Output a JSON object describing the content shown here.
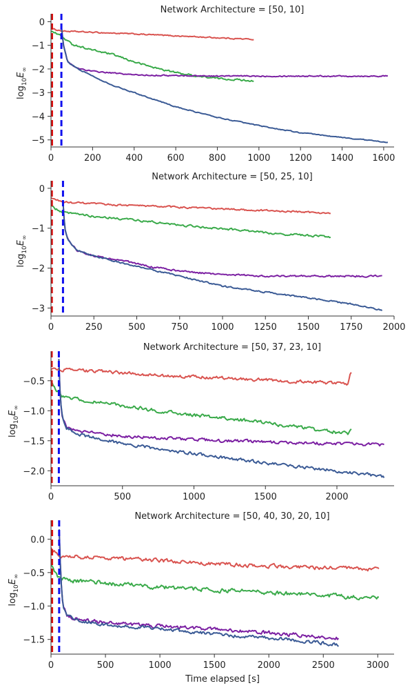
{
  "colors": {
    "series_red": "#d9534f",
    "series_green": "#3aaa4a",
    "series_purple": "#7b1fa2",
    "series_blue": "#3a5a95",
    "vline_red": "#dd1111",
    "vline_blue": "#1010ee"
  },
  "xlabel": "Time elapsed [s]",
  "chart_data": [
    {
      "type": "line",
      "title": "Network Architecture = [50, 10]",
      "ylabel": "log10E∞",
      "xlim": [
        0,
        1650
      ],
      "ylim": [
        -5.3,
        0.1
      ],
      "xticks": [
        0,
        200,
        400,
        600,
        800,
        1000,
        1200,
        1400,
        1600
      ],
      "yticks": [
        0,
        -1,
        -2,
        -3,
        -4,
        -5
      ],
      "vlines": [
        {
          "x": 5,
          "color": "vline_red"
        },
        {
          "x": 50,
          "color": "vline_blue"
        }
      ],
      "series": [
        {
          "color": "series_red",
          "noise": 0.04,
          "x": [
            0,
            60,
            200,
            400,
            600,
            800,
            975
          ],
          "y": [
            -0.3,
            -0.4,
            -0.45,
            -0.52,
            -0.6,
            -0.68,
            -0.75
          ]
        },
        {
          "color": "series_green",
          "noise": 0.06,
          "x": [
            0,
            40,
            100,
            200,
            300,
            400,
            500,
            600,
            700,
            800,
            975
          ],
          "y": [
            -0.4,
            -0.55,
            -0.95,
            -1.2,
            -1.4,
            -1.7,
            -1.95,
            -2.15,
            -2.3,
            -2.4,
            -2.5
          ]
        },
        {
          "color": "series_purple",
          "noise": 0.04,
          "x": [
            50,
            60,
            80,
            120,
            200,
            400,
            600,
            800,
            1000,
            1200,
            1400,
            1620
          ],
          "y": [
            -0.2,
            -1.0,
            -1.7,
            -1.95,
            -2.1,
            -2.25,
            -2.28,
            -2.3,
            -2.3,
            -2.3,
            -2.3,
            -2.3
          ]
        },
        {
          "color": "series_blue",
          "noise": 0.03,
          "x": [
            50,
            60,
            80,
            120,
            200,
            300,
            400,
            500,
            600,
            800,
            1000,
            1200,
            1400,
            1620
          ],
          "y": [
            -0.2,
            -1.0,
            -1.7,
            -1.95,
            -2.3,
            -2.7,
            -3.0,
            -3.3,
            -3.6,
            -4.05,
            -4.4,
            -4.7,
            -4.9,
            -5.1
          ]
        }
      ]
    },
    {
      "type": "line",
      "title": "Network Architecture = [50, 25, 10]",
      "ylabel": "log10E∞",
      "xlim": [
        0,
        2000
      ],
      "ylim": [
        -3.2,
        0.05
      ],
      "xticks": [
        0,
        250,
        500,
        750,
        1000,
        1250,
        1500,
        1750,
        2000
      ],
      "yticks": [
        0,
        -1,
        -2,
        -3
      ],
      "vlines": [
        {
          "x": 5,
          "color": "vline_red"
        },
        {
          "x": 70,
          "color": "vline_blue"
        }
      ],
      "series": [
        {
          "color": "series_red",
          "noise": 0.035,
          "x": [
            0,
            80,
            300,
            600,
            900,
            1200,
            1630
          ],
          "y": [
            -0.25,
            -0.35,
            -0.4,
            -0.45,
            -0.5,
            -0.55,
            -0.62
          ]
        },
        {
          "color": "series_green",
          "noise": 0.04,
          "x": [
            0,
            60,
            150,
            300,
            500,
            700,
            900,
            1100,
            1300,
            1630
          ],
          "y": [
            -0.45,
            -0.6,
            -0.65,
            -0.72,
            -0.8,
            -0.9,
            -0.98,
            -1.05,
            -1.13,
            -1.22
          ]
        },
        {
          "color": "series_purple",
          "noise": 0.035,
          "x": [
            70,
            80,
            100,
            150,
            250,
            400,
            600,
            800,
            1000,
            1250,
            1500,
            1750,
            1930
          ],
          "y": [
            -0.3,
            -1.0,
            -1.3,
            -1.55,
            -1.7,
            -1.8,
            -1.98,
            -2.1,
            -2.15,
            -2.2,
            -2.2,
            -2.2,
            -2.2
          ]
        },
        {
          "color": "series_blue",
          "noise": 0.03,
          "x": [
            70,
            80,
            100,
            150,
            250,
            400,
            600,
            800,
            1000,
            1250,
            1500,
            1750,
            1930
          ],
          "y": [
            -0.3,
            -1.0,
            -1.3,
            -1.55,
            -1.7,
            -1.85,
            -2.05,
            -2.25,
            -2.45,
            -2.6,
            -2.75,
            -2.9,
            -3.05
          ]
        }
      ]
    },
    {
      "type": "line",
      "title": "Network Architecture = [50, 37, 23, 10]",
      "ylabel": "log10E∞",
      "xlim": [
        0,
        2400
      ],
      "ylim": [
        -2.25,
        -0.1
      ],
      "xticks": [
        0,
        500,
        1000,
        1500,
        2000
      ],
      "yticks": [
        -0.5,
        -1.0,
        -1.5,
        -2.0
      ],
      "vlines": [
        {
          "x": 5,
          "color": "vline_red"
        },
        {
          "x": 55,
          "color": "vline_blue"
        }
      ],
      "series": [
        {
          "color": "series_red",
          "noise": 0.04,
          "x": [
            0,
            100,
            400,
            800,
            1200,
            1600,
            2080,
            2090,
            2100
          ],
          "y": [
            -0.3,
            -0.32,
            -0.35,
            -0.42,
            -0.45,
            -0.5,
            -0.55,
            -0.4,
            -0.38
          ]
        },
        {
          "color": "series_green",
          "noise": 0.045,
          "x": [
            0,
            40,
            80,
            150,
            300,
            600,
            900,
            1200,
            1500,
            1800,
            2080,
            2100
          ],
          "y": [
            -0.5,
            -0.65,
            -0.75,
            -0.8,
            -0.85,
            -0.95,
            -1.05,
            -1.12,
            -1.2,
            -1.3,
            -1.38,
            -1.3
          ]
        },
        {
          "color": "series_purple",
          "noise": 0.04,
          "x": [
            55,
            65,
            80,
            110,
            200,
            500,
            800,
            1200,
            1600,
            2000,
            2330
          ],
          "y": [
            -0.15,
            -0.8,
            -1.1,
            -1.28,
            -1.35,
            -1.42,
            -1.46,
            -1.5,
            -1.53,
            -1.55,
            -1.57
          ]
        },
        {
          "color": "series_blue",
          "noise": 0.04,
          "x": [
            55,
            65,
            80,
            110,
            200,
            500,
            800,
            1200,
            1600,
            2000,
            2330
          ],
          "y": [
            -0.15,
            -0.8,
            -1.1,
            -1.28,
            -1.4,
            -1.55,
            -1.65,
            -1.78,
            -1.9,
            -2.0,
            -2.1
          ]
        }
      ]
    },
    {
      "type": "line",
      "title": "Network Architecture = [50, 40, 30, 20, 10]",
      "ylabel": "log10E∞",
      "xlim": [
        0,
        3150
      ],
      "ylim": [
        -1.72,
        0.2
      ],
      "xticks": [
        0,
        500,
        1000,
        1500,
        2000,
        2500,
        3000
      ],
      "yticks": [
        0.0,
        -0.5,
        -1.0,
        -1.5
      ],
      "vlines": [
        {
          "x": 10,
          "color": "vline_red"
        },
        {
          "x": 75,
          "color": "vline_blue"
        }
      ],
      "series": [
        {
          "color": "series_red",
          "noise": 0.045,
          "x": [
            0,
            100,
            500,
            1000,
            1500,
            2000,
            2500,
            3010
          ],
          "y": [
            -0.15,
            -0.25,
            -0.28,
            -0.32,
            -0.37,
            -0.4,
            -0.43,
            -0.45
          ]
        },
        {
          "color": "series_green",
          "noise": 0.05,
          "x": [
            0,
            60,
            150,
            500,
            1000,
            1500,
            2000,
            2500,
            3010
          ],
          "y": [
            -0.4,
            -0.55,
            -0.62,
            -0.66,
            -0.72,
            -0.76,
            -0.8,
            -0.84,
            -0.88
          ]
        },
        {
          "color": "series_purple",
          "noise": 0.045,
          "x": [
            75,
            90,
            110,
            150,
            250,
            500,
            1000,
            1500,
            2000,
            2640
          ],
          "y": [
            0.15,
            -0.6,
            -1.0,
            -1.15,
            -1.2,
            -1.25,
            -1.3,
            -1.35,
            -1.4,
            -1.48
          ]
        },
        {
          "color": "series_blue",
          "noise": 0.04,
          "x": [
            75,
            90,
            110,
            150,
            250,
            500,
            1000,
            1500,
            2000,
            2640
          ],
          "y": [
            0.15,
            -0.6,
            -1.0,
            -1.15,
            -1.22,
            -1.28,
            -1.34,
            -1.42,
            -1.48,
            -1.58
          ]
        }
      ]
    }
  ]
}
